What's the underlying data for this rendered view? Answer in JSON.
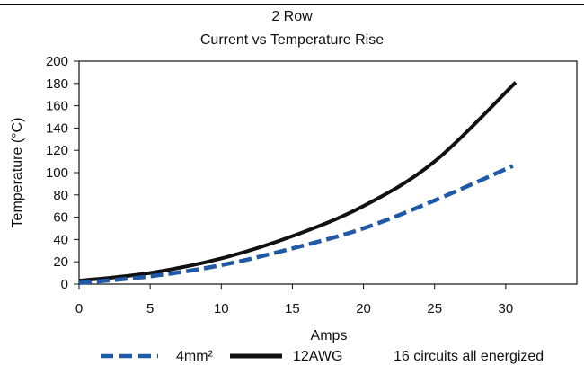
{
  "chart_data": {
    "type": "line",
    "title": "2 Row",
    "subtitle": "Current vs Temperature Rise",
    "xlabel": "Amps",
    "ylabel": "Temperature (°C)",
    "xlim": [
      0,
      35
    ],
    "ylim": [
      0,
      200
    ],
    "xticks": [
      0,
      5,
      10,
      15,
      20,
      25,
      30
    ],
    "yticks": [
      0,
      20,
      40,
      60,
      80,
      100,
      120,
      140,
      160,
      180,
      200
    ],
    "grid": false,
    "legend_position": "bottom",
    "series": [
      {
        "name": "4mm²",
        "style": "dashed",
        "color": "#1f5aa8",
        "x": [
          0,
          5,
          10,
          15,
          20,
          25,
          30.5
        ],
        "y": [
          1,
          7,
          17,
          32,
          50,
          75,
          106
        ]
      },
      {
        "name": "12AWG",
        "style": "solid",
        "color": "#111111",
        "x": [
          0,
          5,
          10,
          15,
          20,
          25,
          30.7
        ],
        "y": [
          3,
          10,
          23,
          43,
          70,
          110,
          181
        ]
      }
    ],
    "annotation": "16 circuits all energized"
  }
}
